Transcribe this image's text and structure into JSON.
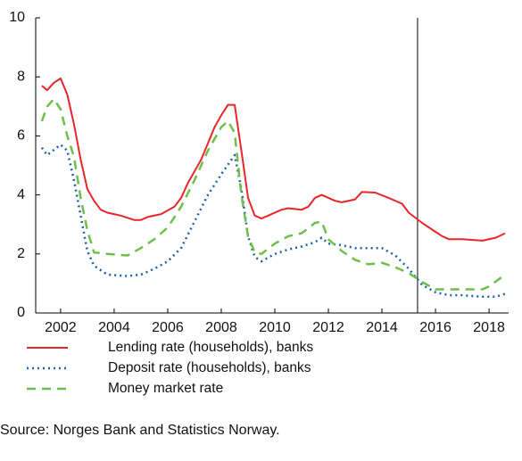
{
  "chart_data": {
    "type": "line",
    "xlim": [
      2001.07,
      2018.73
    ],
    "xticks": [
      2002,
      2004,
      2006,
      2008,
      2010,
      2012,
      2014,
      2016,
      2018
    ],
    "ylim": [
      0,
      10
    ],
    "yticks": [
      0,
      2,
      4,
      6,
      8,
      10
    ],
    "vline": 2015.33,
    "series": [
      {
        "name": "Lending rate (households), banks",
        "color": "#e8262a",
        "style": "solid",
        "x": [
          2001.3,
          2001.5,
          2001.75,
          2002.0,
          2002.25,
          2002.5,
          2002.75,
          2003.0,
          2003.25,
          2003.5,
          2003.75,
          2004.25,
          2004.75,
          2005.0,
          2005.25,
          2005.75,
          2006.25,
          2006.5,
          2006.75,
          2007.25,
          2007.75,
          2008.0,
          2008.25,
          2008.5,
          2008.75,
          2009.0,
          2009.25,
          2009.5,
          2009.75,
          2010.25,
          2010.5,
          2011.0,
          2011.25,
          2011.5,
          2011.75,
          2012.25,
          2012.5,
          2013.0,
          2013.25,
          2013.75,
          2014.25,
          2014.75,
          2015.0,
          2015.5,
          2016.0,
          2016.25,
          2016.5,
          2017.0,
          2017.75,
          2018.25,
          2018.6
        ],
        "values": [
          7.7,
          7.55,
          7.8,
          7.95,
          7.4,
          6.4,
          5.2,
          4.2,
          3.8,
          3.5,
          3.4,
          3.3,
          3.15,
          3.15,
          3.25,
          3.35,
          3.6,
          3.9,
          4.4,
          5.2,
          6.3,
          6.7,
          7.05,
          7.05,
          5.5,
          3.9,
          3.3,
          3.2,
          3.3,
          3.5,
          3.55,
          3.5,
          3.6,
          3.9,
          4.0,
          3.8,
          3.75,
          3.85,
          4.1,
          4.08,
          3.9,
          3.7,
          3.4,
          3.05,
          2.75,
          2.6,
          2.5,
          2.5,
          2.45,
          2.55,
          2.7
        ]
      },
      {
        "name": "Deposit rate (households), banks",
        "color": "#1f5fa8",
        "style": "dotted",
        "x": [
          2001.3,
          2001.5,
          2002.0,
          2002.25,
          2002.5,
          2002.75,
          2003.0,
          2003.25,
          2003.75,
          2004.5,
          2005.0,
          2005.5,
          2006.0,
          2006.5,
          2007.0,
          2007.5,
          2008.0,
          2008.5,
          2008.75,
          2009.0,
          2009.25,
          2009.5,
          2010.0,
          2010.5,
          2011.0,
          2011.5,
          2011.75,
          2012.0,
          2012.5,
          2013.0,
          2013.5,
          2014.0,
          2014.5,
          2015.0,
          2015.5,
          2016.0,
          2016.5,
          2017.0,
          2017.75,
          2018.25,
          2018.6
        ],
        "values": [
          5.6,
          5.35,
          5.7,
          5.5,
          4.5,
          3.3,
          2.1,
          1.6,
          1.3,
          1.25,
          1.3,
          1.5,
          1.75,
          2.2,
          3.1,
          4.0,
          4.7,
          5.35,
          4.2,
          2.6,
          1.9,
          1.75,
          2.0,
          2.15,
          2.25,
          2.4,
          2.55,
          2.35,
          2.3,
          2.2,
          2.2,
          2.2,
          1.95,
          1.5,
          0.95,
          0.7,
          0.6,
          0.6,
          0.55,
          0.55,
          0.65
        ]
      },
      {
        "name": "Money market rate",
        "color": "#6cc04a",
        "style": "dashed",
        "x": [
          2001.3,
          2001.5,
          2001.75,
          2002.0,
          2002.25,
          2002.5,
          2002.75,
          2003.0,
          2003.25,
          2003.75,
          2004.5,
          2005.0,
          2005.5,
          2006.0,
          2006.5,
          2007.0,
          2007.5,
          2008.0,
          2008.25,
          2008.5,
          2008.75,
          2009.0,
          2009.25,
          2009.5,
          2010.0,
          2010.5,
          2011.0,
          2011.5,
          2011.75,
          2012.0,
          2012.5,
          2013.0,
          2013.5,
          2014.0,
          2014.5,
          2015.0,
          2015.5,
          2016.0,
          2016.5,
          2017.0,
          2017.75,
          2018.0,
          2018.6
        ],
        "values": [
          6.5,
          7.0,
          7.25,
          6.9,
          6.0,
          5.3,
          3.9,
          2.8,
          2.05,
          2.0,
          1.95,
          2.2,
          2.5,
          2.9,
          3.6,
          4.5,
          5.5,
          6.3,
          6.5,
          6.1,
          4.0,
          2.6,
          2.05,
          2.0,
          2.35,
          2.6,
          2.7,
          3.05,
          3.1,
          2.5,
          2.1,
          1.8,
          1.65,
          1.7,
          1.55,
          1.35,
          1.05,
          0.8,
          0.8,
          0.8,
          0.8,
          0.9,
          1.3
        ]
      }
    ],
    "source": "Source: Norges Bank and Statistics Norway."
  }
}
